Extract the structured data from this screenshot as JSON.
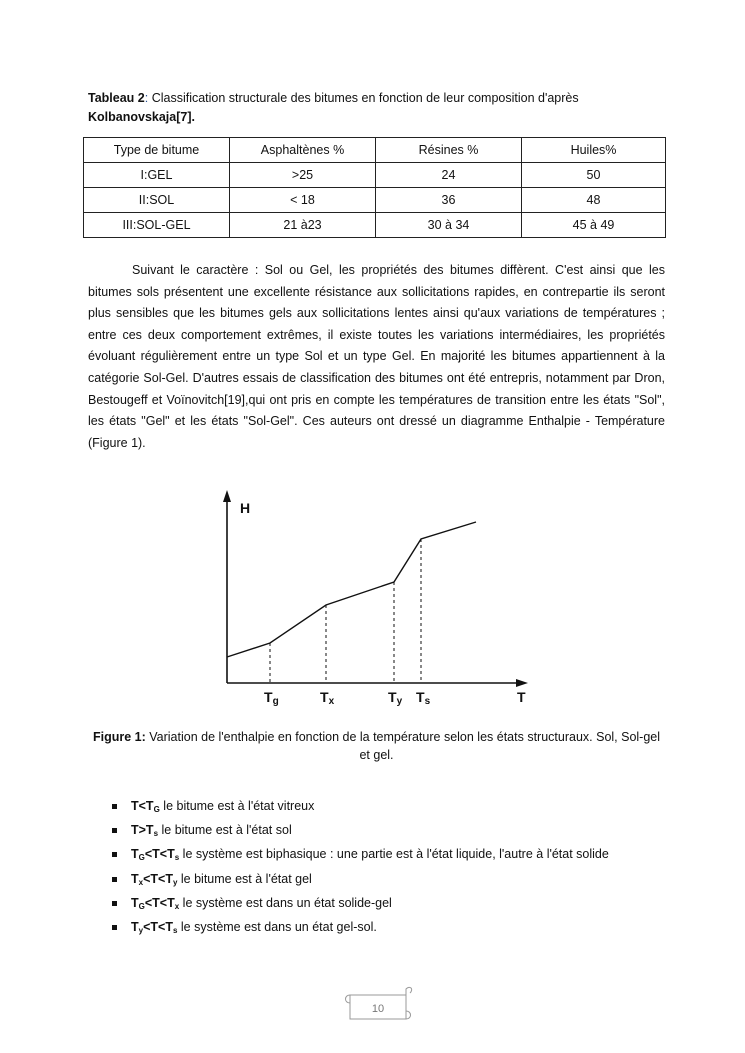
{
  "table_caption": {
    "label": "Tableau 2",
    "colon": ":",
    "text": " Classification structurale des bitumes en fonction de leur composition d'après",
    "author": "Kolbanovskaja[7]."
  },
  "table": {
    "headers": [
      "Type de bitume",
      "Asphaltènes %",
      "Résines %",
      "Huiles%"
    ],
    "rows": [
      [
        "I:GEL",
        ">25",
        "24",
        "50"
      ],
      [
        "II:SOL",
        "< 18",
        "36",
        "48"
      ],
      [
        "III:SOL-GEL",
        "21 à23",
        "30 à 34",
        "45 à 49"
      ]
    ]
  },
  "paragraph": "Suivant le caractère : Sol ou Gel, les propriétés des bitumes diffèrent. C'est ainsi que les bitumes sols présentent une excellente résistance aux sollicitations rapides, en contrepartie ils seront plus sensibles que les bitumes gels aux sollicitations lentes ainsi qu'aux variations de températures ; entre ces deux comportement extrêmes, il existe toutes les variations intermédiaires, les propriétés évoluant régulièrement entre un type Sol et un type Gel. En majorité les bitumes appartiennent à la catégorie Sol-Gel. D'autres essais de classification des bitumes ont été entrepris, notamment par Dron, Bestougeff et Voïnovitch[19],qui ont pris en compte les températures de transition entre les états \"Sol\", les états \"Gel\" et les états \"Sol-Gel\". Ces auteurs ont dressé un diagramme Enthalpie - Température (Figure 1).",
  "figure": {
    "y_label": "H",
    "x_label": "T",
    "ticks": [
      {
        "main": "T",
        "sub": "g"
      },
      {
        "main": "T",
        "sub": "x"
      },
      {
        "main": "T",
        "sub": "y"
      },
      {
        "main": "T",
        "sub": "s"
      }
    ],
    "caption_label": "Figure 1:",
    "caption_text": " Variation de l'enthalpie en fonction de la température selon les états structuraux. Sol, Sol-gel et gel."
  },
  "bullets": [
    {
      "a": "T<T",
      "s1": "G",
      "b": "",
      "s2": "",
      "text": " le bitume est à l'état vitreux"
    },
    {
      "a": "T>T",
      "s1": "s",
      "b": "",
      "s2": "",
      "text": " le bitume est à l'état sol"
    },
    {
      "a": "T",
      "s1": "G",
      "b": "<T<T",
      "s2": "s",
      "text": "   le système est biphasique : une partie est à l'état liquide, l'autre à l'état solide"
    },
    {
      "a": "T",
      "s1": "x",
      "b": "<T<T",
      "s2": "y",
      "text": " le bitume est à l'état gel"
    },
    {
      "a": "T",
      "s1": "G",
      "b": "<T<T",
      "s2": "x",
      "text": " le système est dans un état solide-gel"
    },
    {
      "a": "T",
      "s1": "y",
      "b": "<T<T",
      "s2": "s",
      "text": " le système est dans un état gel-sol."
    }
  ],
  "page_number": "10"
}
